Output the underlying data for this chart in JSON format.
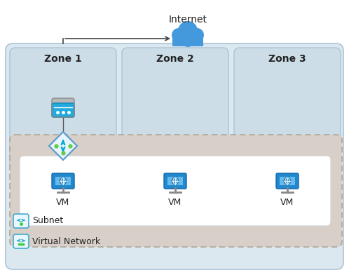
{
  "bg_color": "#ffffff",
  "internet_label": "Internet",
  "zones": [
    "Zone 1",
    "Zone 2",
    "Zone 3"
  ],
  "vm_label": "VM",
  "subnet_label": "Subnet",
  "vnet_label": "Virtual Network",
  "outer_bg": "#dce8f0",
  "outer_border": "#aac4d4",
  "zone_bg": "#ccdde8",
  "zone_border": "#aac4d4",
  "subnet_bg": "#d8d0c8",
  "subnet_border": "#b0a898",
  "vm_box_bg": "#ffffff",
  "vm_box_border": "#d0d0d0",
  "cloud_color": "#4499dd",
  "arrow_color": "#444444",
  "nat_diamond_face": "#e8f4ff",
  "nat_diamond_edge": "#5599cc",
  "nat_arrow_color": "#00aacc",
  "nat_green": "#66cc44",
  "ngw_top_color": "#cccccc",
  "ngw_body_color": "#22aadd",
  "ngw_dot_color": "#ffffff",
  "vm_body_color": "#2288cc",
  "vm_screen_color": "#66bbee",
  "vm_globe_color": "#1166aa",
  "vm_stand_color": "#888888",
  "subnet_icon_face": "#e8f6ff",
  "subnet_icon_edge": "#44aacc",
  "subnet_arrow_color": "#22aacc",
  "text_dark": "#222222",
  "text_zone_size": 10,
  "text_vm_size": 9,
  "text_internet_size": 10,
  "text_label_size": 9,
  "figw": 4.98,
  "figh": 3.92,
  "dpi": 100
}
